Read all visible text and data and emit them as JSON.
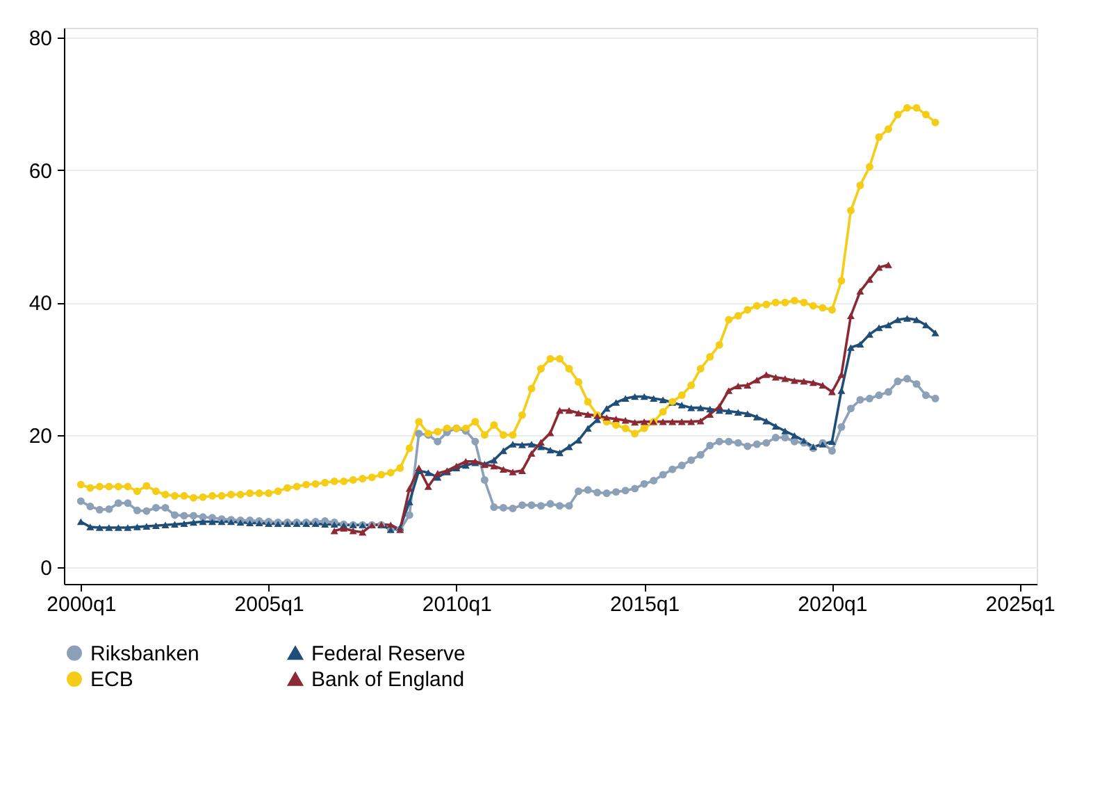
{
  "chart_data": {
    "type": "line",
    "categories": [
      "2000q1",
      null,
      null,
      null,
      null,
      null,
      null,
      null,
      null,
      null,
      null,
      null,
      null,
      null,
      null,
      null,
      null,
      null,
      null,
      null,
      "2005q1",
      null,
      null,
      null,
      null,
      null,
      null,
      null,
      null,
      null,
      null,
      null,
      null,
      null,
      null,
      null,
      null,
      null,
      null,
      null,
      "2010q1",
      null,
      null,
      null,
      null,
      null,
      null,
      null,
      null,
      null,
      null,
      null,
      null,
      null,
      null,
      null,
      null,
      null,
      null,
      null,
      "2015q1",
      null,
      null,
      null,
      null,
      null,
      null,
      null,
      null,
      null,
      null,
      null,
      null,
      null,
      null,
      null,
      null,
      null,
      null,
      null,
      "2020q1",
      null,
      null,
      null,
      null,
      null,
      null,
      null,
      null,
      null,
      null,
      null,
      null,
      null,
      null,
      null,
      null,
      null,
      null,
      null,
      "2025q1"
    ],
    "series": [
      {
        "name": "Riksbanken",
        "color": "#8ca0b8",
        "marker": "circle",
        "values": [
          10,
          9.2,
          8.7,
          8.8,
          9.7,
          9.7,
          8.6,
          8.5,
          9,
          9,
          7.9,
          7.8,
          7.8,
          7.6,
          7.5,
          7.3,
          7.2,
          7.1,
          7.1,
          7,
          6.9,
          6.8,
          6.8,
          6.8,
          6.8,
          6.9,
          7,
          6.8,
          6.5,
          6.4,
          6.4,
          6.4,
          6.4,
          5.7,
          5.7,
          7.9,
          20.2,
          20,
          19,
          20.4,
          21,
          20.6,
          19,
          13.2,
          9.1,
          9,
          8.9,
          9.4,
          9.4,
          9.3,
          9.6,
          9.3,
          9.3,
          11.5,
          11.7,
          11.3,
          11.2,
          11.4,
          11.6,
          11.9,
          12.6,
          13.1,
          14,
          14.8,
          15.4,
          16.2,
          17,
          18.4,
          19,
          19,
          18.8,
          18.3,
          18.6,
          18.8,
          19.6,
          19.6,
          19,
          18.8,
          18,
          18.8,
          17.6,
          21.2,
          24,
          25.3,
          25.5,
          26,
          26.5,
          28.1,
          28.5,
          27.7,
          26,
          25.5,
          null,
          null,
          null,
          null,
          null,
          null,
          null,
          null,
          null
        ]
      },
      {
        "name": "Federal Reserve",
        "color": "#1f4e79",
        "marker": "triangle",
        "values": [
          6.9,
          6.1,
          6,
          6,
          6,
          6,
          6.1,
          6.2,
          6.3,
          6.4,
          6.5,
          6.6,
          6.8,
          6.9,
          6.9,
          6.9,
          6.9,
          6.8,
          6.7,
          6.7,
          6.6,
          6.6,
          6.6,
          6.6,
          6.6,
          6.6,
          6.5,
          6.5,
          6.4,
          6.4,
          6.4,
          6.4,
          6.4,
          5.7,
          6,
          9.9,
          14.6,
          14.3,
          13.6,
          14.4,
          15,
          15.4,
          15.8,
          15.6,
          16.2,
          17.6,
          18.6,
          18.5,
          18.6,
          18.2,
          17.7,
          17.3,
          18.2,
          19.2,
          21,
          22.3,
          24,
          24.9,
          25.5,
          25.8,
          25.8,
          25.5,
          25.3,
          24.9,
          24.5,
          24.1,
          24.1,
          23.9,
          23.7,
          23.6,
          23.4,
          23.2,
          22.7,
          22.1,
          21.3,
          20.6,
          19.9,
          19.1,
          18.2,
          18.6,
          19,
          26.7,
          33.2,
          33.7,
          35.2,
          36.2,
          36.6,
          37.4,
          37.6,
          37.4,
          36.6,
          35.4,
          null,
          null,
          null,
          null,
          null,
          null,
          null,
          null,
          null
        ]
      },
      {
        "name": "ECB",
        "color": "#f5cd17",
        "marker": "circle",
        "values": [
          12.5,
          12,
          12.2,
          12.2,
          12.2,
          12.2,
          11.5,
          12.3,
          11.5,
          11,
          10.8,
          10.8,
          10.5,
          10.6,
          10.8,
          10.8,
          11,
          11,
          11.2,
          11.2,
          11.2,
          11.5,
          12,
          12.2,
          12.5,
          12.6,
          12.8,
          13,
          13,
          13.2,
          13.4,
          13.6,
          14,
          14.3,
          15,
          18,
          22,
          20.2,
          20.5,
          21,
          21,
          21,
          22,
          20,
          21.5,
          20,
          20,
          23,
          27,
          30,
          31.5,
          31.5,
          30,
          28,
          25,
          23,
          22,
          21.5,
          21,
          20.2,
          21,
          22,
          23.5,
          25,
          26,
          27.5,
          30,
          31.8,
          33.6,
          37.4,
          38,
          38.9,
          39.5,
          39.7,
          40,
          40,
          40.3,
          40,
          39.5,
          39.2,
          38.9,
          43.3,
          53.9,
          57.7,
          60.5,
          65,
          66.2,
          68.4,
          69.4,
          69.4,
          68.4,
          67.2,
          null,
          null,
          null,
          null,
          null,
          null,
          null,
          null,
          null
        ]
      },
      {
        "name": "Bank of England",
        "color": "#8b2a35",
        "marker": "triangle",
        "values": [
          null,
          null,
          null,
          null,
          null,
          null,
          null,
          null,
          null,
          null,
          null,
          null,
          null,
          null,
          null,
          null,
          null,
          null,
          null,
          null,
          null,
          null,
          null,
          null,
          null,
          null,
          null,
          5.5,
          5.9,
          5.5,
          5.3,
          6.4,
          6.5,
          6.4,
          5.7,
          11.9,
          15,
          12.2,
          14.2,
          14.6,
          15.3,
          16,
          16,
          15.5,
          15.3,
          14.8,
          14.4,
          14.6,
          17.2,
          18.9,
          20.3,
          23.7,
          23.7,
          23.3,
          23.1,
          22.9,
          22.6,
          22.4,
          22.2,
          21.9,
          22,
          22,
          22,
          22,
          22,
          22,
          22.1,
          23.1,
          24.3,
          26.7,
          27.4,
          27.5,
          28.3,
          29.1,
          28.7,
          28.5,
          28.2,
          28.1,
          27.9,
          27.5,
          26.5,
          29.1,
          38,
          41.7,
          43.5,
          45.3,
          45.7,
          null,
          null,
          null,
          null,
          null,
          null,
          null,
          null,
          null,
          null,
          null,
          null,
          null,
          null
        ]
      }
    ],
    "ylim": [
      -2.5,
      81.5
    ],
    "yticks": [
      0,
      20,
      40,
      60,
      80
    ],
    "grid": "y",
    "legend": "bottom",
    "line_style": "solid"
  }
}
